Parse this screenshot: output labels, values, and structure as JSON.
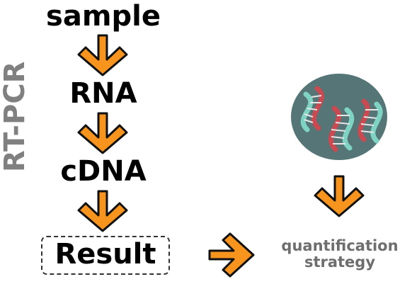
{
  "flow": {
    "steps": [
      "sample",
      "RNA",
      "cDNA",
      "Result"
    ]
  },
  "side_label": "RT-PCR",
  "strategy": {
    "line1": "quantification",
    "line2": "strategy"
  },
  "icons": {
    "arrow": "chevron-arrow-icon",
    "dna": "dna-strands-icon"
  },
  "colors": {
    "arrow_fill": "#f7941d",
    "arrow_stroke": "#111111",
    "circle": "#557577",
    "dna_red": "#c94a50",
    "dna_teal": "#7fd3c2",
    "label_gray": "#808080"
  }
}
